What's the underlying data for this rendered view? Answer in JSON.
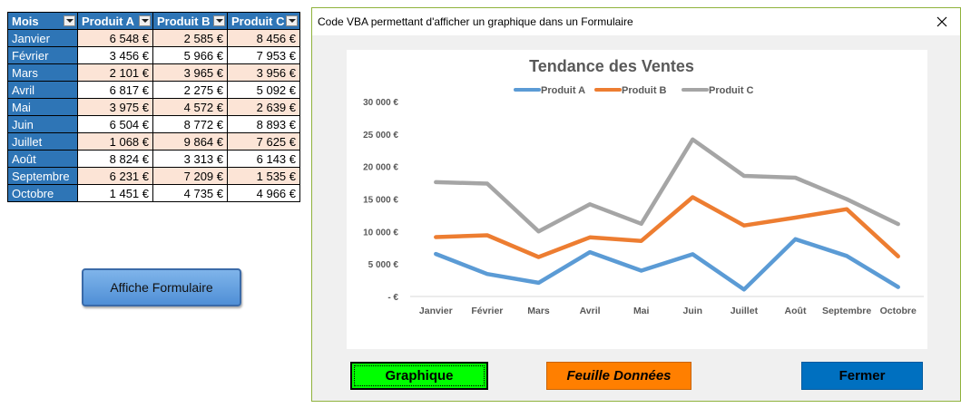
{
  "table": {
    "headers": [
      "Mois",
      "Produit A",
      "Produit B",
      "Produit C"
    ],
    "rows": [
      [
        "Janvier",
        "6 548 €",
        "2 585 €",
        "8 456 €"
      ],
      [
        "Février",
        "3 456 €",
        "5 966 €",
        "7 953 €"
      ],
      [
        "Mars",
        "2 101 €",
        "3 965 €",
        "3 956 €"
      ],
      [
        "Avril",
        "6 817 €",
        "2 275 €",
        "5 092 €"
      ],
      [
        "Mai",
        "3 975 €",
        "4 572 €",
        "2 639 €"
      ],
      [
        "Juin",
        "6 504 €",
        "8 772 €",
        "8 893 €"
      ],
      [
        "Juillet",
        "1 068 €",
        "9 864 €",
        "7 625 €"
      ],
      [
        "Août",
        "8 824 €",
        "3 313 €",
        "6 143 €"
      ],
      [
        "Septembre",
        "6 231 €",
        "7 209 €",
        "1 535 €"
      ],
      [
        "Octobre",
        "1 451 €",
        "4 735 €",
        "4 966 €"
      ]
    ]
  },
  "sheet_button": {
    "label": "Affiche Formulaire"
  },
  "form": {
    "title": "Code VBA permettant d'afficher un graphique dans un Formulaire",
    "close_glyph": "✕",
    "buttons": {
      "graph": "Graphique",
      "data": "Feuille Données",
      "close": "Fermer"
    }
  },
  "colors": {
    "series_a": "#5b9bd5",
    "series_b": "#ed7d31",
    "series_c": "#a5a5a5",
    "table_header": "#2e75b6",
    "table_band": "#fce4d6"
  },
  "chart_data": {
    "type": "line",
    "title": "Tendance des Ventes",
    "xlabel": "",
    "ylabel": "",
    "categories": [
      "Janvier",
      "Février",
      "Mars",
      "Avril",
      "Mai",
      "Juin",
      "Juillet",
      "Août",
      "Septembre",
      "Octobre"
    ],
    "y_tick_labels": [
      "30 000 €",
      "25 000 €",
      "20 000 €",
      "15 000 €",
      "10 000 €",
      "5 000 €",
      "-  €"
    ],
    "y_ticks": [
      30000,
      25000,
      20000,
      15000,
      10000,
      5000,
      0
    ],
    "ylim": [
      0,
      30000
    ],
    "legend_position": "top",
    "grid": false,
    "series": [
      {
        "name": "Produit A",
        "values": [
          6548,
          3456,
          2101,
          6817,
          3975,
          6504,
          1068,
          8824,
          6231,
          1451
        ]
      },
      {
        "name": "Produit B",
        "values": [
          9133,
          9422,
          6066,
          9092,
          8547,
          15276,
          10932,
          12137,
          13440,
          6186
        ]
      },
      {
        "name": "Produit C",
        "values": [
          17589,
          17375,
          10022,
          14184,
          11186,
          24169,
          18557,
          18280,
          14975,
          11152
        ]
      }
    ]
  }
}
